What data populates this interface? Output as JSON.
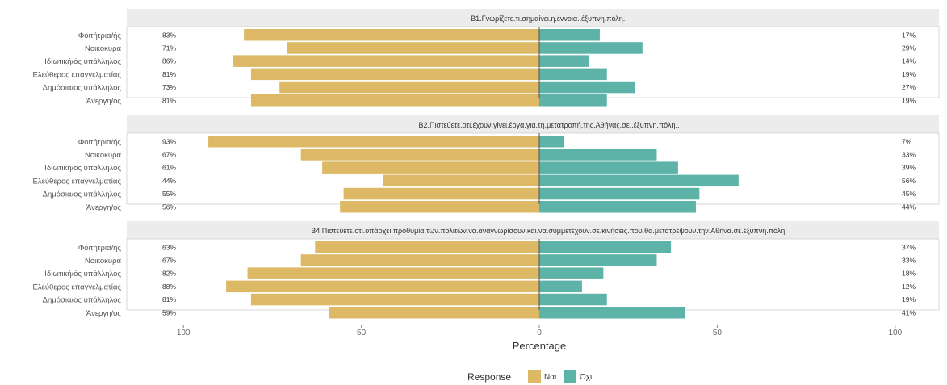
{
  "chart_data": {
    "type": "bar",
    "orientation": "horizontal",
    "diverging": true,
    "xlabel": "Percentage",
    "xlim": [
      -100,
      100
    ],
    "xticks": [
      "100",
      "50",
      "0",
      "50",
      "100"
    ],
    "categories": [
      "Φοιτήτρια/ής",
      "Νοικοκυρά",
      "Ιδιωτική/ός υπάλληλος",
      "Ελεύθερος επαγγελματίας",
      "Δημόσια/ος υπάλληλος",
      "Άνεργη/ος"
    ],
    "legend": {
      "title": "Response",
      "position": "bottom",
      "items": [
        {
          "name": "Ναι",
          "color": "#ddb865"
        },
        {
          "name": "Όχι",
          "color": "#5db3a7"
        }
      ]
    },
    "panels": [
      {
        "title": "B1.Γνωρίζετε.τι.σημαίνει.η.έννοια..έξυπνη.πόλη..",
        "series": [
          {
            "name": "Ναι",
            "values": [
              83,
              71,
              86,
              81,
              73,
              81
            ]
          },
          {
            "name": "Όχι",
            "values": [
              17,
              29,
              14,
              19,
              27,
              19
            ]
          }
        ]
      },
      {
        "title": "B2.Πιστεύετε.οτι.έχουν.γίνει.έργα.για.τη.μετατροπή.της.Αθήνας.σε..έξυπνη.πόλη..",
        "series": [
          {
            "name": "Ναι",
            "values": [
              93,
              67,
              61,
              44,
              55,
              56
            ]
          },
          {
            "name": "Όχι",
            "values": [
              7,
              33,
              39,
              56,
              45,
              44
            ]
          }
        ]
      },
      {
        "title": "B4.Πιστεύετε.οτι.υπάρχει.προθυμία.των.πολιτών.να.αναγνωρίσουν.και.να.συμμετέχουν.σε.κινήσεις.που.θα.μετατρέψουν.την.Αθήνα.σε.έξυπνη.πόλη.",
        "series": [
          {
            "name": "Ναι",
            "values": [
              63,
              67,
              82,
              88,
              81,
              59
            ]
          },
          {
            "name": "Όχι",
            "values": [
              37,
              33,
              18,
              12,
              19,
              41
            ]
          }
        ]
      }
    ]
  }
}
